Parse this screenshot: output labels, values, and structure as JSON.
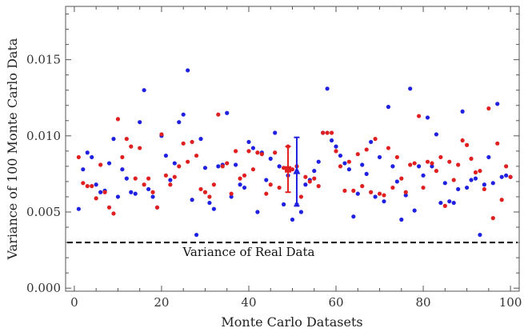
{
  "chart_data": {
    "type": "scatter",
    "xlabel": "Monte Carlo Datasets",
    "ylabel": "Variance of 100 Monte Carlo Data",
    "xlim": [
      -2,
      102
    ],
    "ylim": [
      -0.0002,
      0.0185
    ],
    "xticks": [
      0,
      20,
      40,
      60,
      80,
      100
    ],
    "yticks": [
      0.0,
      0.005,
      0.01,
      0.015
    ],
    "ytick_labels": [
      "0.000",
      "0.005",
      "0.010",
      "0.015"
    ],
    "grid": false,
    "reference_line": {
      "y": 0.003,
      "label": "Variance of Real Data",
      "style": "dashed",
      "color": "#000000"
    },
    "series": [
      {
        "color": "#2020e0",
        "marker": "circle",
        "x": [
          1,
          2,
          3,
          4,
          5,
          6,
          7,
          8,
          9,
          10,
          11,
          12,
          13,
          14,
          15,
          16,
          17,
          18,
          19,
          20,
          21,
          22,
          23,
          24,
          25,
          26,
          27,
          28,
          29,
          30,
          31,
          32,
          33,
          34,
          35,
          36,
          37,
          38,
          39,
          40,
          41,
          42,
          43,
          44,
          45,
          46,
          47,
          48,
          49,
          50,
          51,
          52,
          53,
          54,
          55,
          56,
          57,
          58,
          59,
          60,
          61,
          62,
          63,
          64,
          65,
          66,
          67,
          68,
          69,
          70,
          71,
          72,
          73,
          74,
          75,
          76,
          77,
          78,
          79,
          80,
          81,
          82,
          83,
          84,
          85,
          86,
          87,
          88,
          89,
          90,
          91,
          92,
          93,
          94,
          95,
          96,
          97,
          98,
          99,
          100
        ],
        "values": [
          0.0052,
          0.0078,
          0.0089,
          0.0086,
          0.0068,
          0.0063,
          0.0064,
          0.0082,
          0.0098,
          0.006,
          0.0078,
          0.0072,
          0.0063,
          0.0062,
          0.0109,
          0.013,
          0.0065,
          0.006,
          0.0053,
          0.01,
          0.0087,
          0.0071,
          0.0082,
          0.0109,
          0.0114,
          0.0143,
          0.0058,
          0.0035,
          0.0098,
          0.0079,
          0.0056,
          0.0052,
          0.008,
          0.0081,
          0.0115,
          0.006,
          0.0081,
          0.0068,
          0.0066,
          0.0096,
          0.0092,
          0.005,
          0.0089,
          0.0071,
          0.0085,
          0.0102,
          0.008,
          0.0055,
          0.0074,
          0.0045,
          0.0055,
          0.005,
          0.0068,
          0.0071,
          0.0077,
          0.0083,
          0.0102,
          0.0131,
          0.0097,
          0.0093,
          0.0087,
          0.0082,
          0.0078,
          0.0047,
          0.0062,
          0.0081,
          0.0075,
          0.0096,
          0.006,
          0.0086,
          0.0057,
          0.0119,
          0.008,
          0.007,
          0.0045,
          0.0061,
          0.0131,
          0.0051,
          0.008,
          0.0074,
          0.0112,
          0.008,
          0.0101,
          0.0056,
          0.0069,
          0.0057,
          0.0056,
          0.0065,
          0.0116,
          0.0066,
          0.0071,
          0.0072,
          0.0035,
          0.0068,
          0.0086,
          0.0069,
          0.0121,
          0.0073,
          0.0074,
          0.0073
        ]
      },
      {
        "color": "#e02020",
        "marker": "circle",
        "x": [
          1,
          2,
          3,
          4,
          5,
          6,
          7,
          8,
          9,
          10,
          11,
          12,
          13,
          14,
          15,
          16,
          17,
          18,
          19,
          20,
          21,
          22,
          23,
          24,
          25,
          26,
          27,
          28,
          29,
          30,
          31,
          32,
          33,
          34,
          35,
          36,
          37,
          38,
          39,
          40,
          41,
          42,
          43,
          44,
          45,
          46,
          47,
          48,
          49,
          50,
          51,
          52,
          53,
          54,
          55,
          56,
          57,
          58,
          59,
          60,
          61,
          62,
          63,
          64,
          65,
          66,
          67,
          68,
          69,
          70,
          71,
          72,
          73,
          74,
          75,
          76,
          77,
          78,
          79,
          80,
          81,
          82,
          83,
          84,
          85,
          86,
          87,
          88,
          89,
          90,
          91,
          92,
          93,
          94,
          95,
          96,
          97,
          98,
          99,
          100
        ],
        "values": [
          0.0086,
          0.0069,
          0.0067,
          0.0067,
          0.0059,
          0.0081,
          0.0063,
          0.0053,
          0.0049,
          0.0111,
          0.0086,
          0.0098,
          0.0093,
          0.0072,
          0.0092,
          0.0068,
          0.0072,
          0.0063,
          0.0053,
          0.0101,
          0.0074,
          0.0068,
          0.0073,
          0.008,
          0.0095,
          0.0083,
          0.0096,
          0.0087,
          0.0065,
          0.0063,
          0.006,
          0.0068,
          0.0114,
          0.008,
          0.0082,
          0.0062,
          0.009,
          0.0072,
          0.0074,
          0.009,
          0.0078,
          0.0089,
          0.0088,
          0.0062,
          0.0068,
          0.0089,
          0.0066,
          0.0079,
          0.0093,
          0.0078,
          0.008,
          0.006,
          0.0073,
          0.007,
          0.0072,
          0.0067,
          0.0102,
          0.0102,
          0.0102,
          0.009,
          0.008,
          0.0064,
          0.0083,
          0.0064,
          0.0088,
          0.0067,
          0.0091,
          0.0063,
          0.0098,
          0.0062,
          0.0061,
          0.0092,
          0.0066,
          0.0086,
          0.0072,
          0.0063,
          0.0081,
          0.0082,
          0.0113,
          0.0066,
          0.0083,
          0.0082,
          0.0077,
          0.0086,
          0.0054,
          0.0083,
          0.0071,
          0.0081,
          0.0097,
          0.0094,
          0.0085,
          0.0076,
          0.0077,
          0.0065,
          0.0118,
          0.0046,
          0.0095,
          0.0058,
          0.008,
          0.0073
        ]
      }
    ],
    "error_bars": [
      {
        "color": "#e02020",
        "marker": "square",
        "x": 49,
        "y": 0.0078,
        "low": 0.0063,
        "high": 0.0093
      },
      {
        "color": "#2020e0",
        "marker": "triangle",
        "x": 51,
        "y": 0.0077,
        "low": 0.0054,
        "high": 0.0099
      }
    ]
  }
}
